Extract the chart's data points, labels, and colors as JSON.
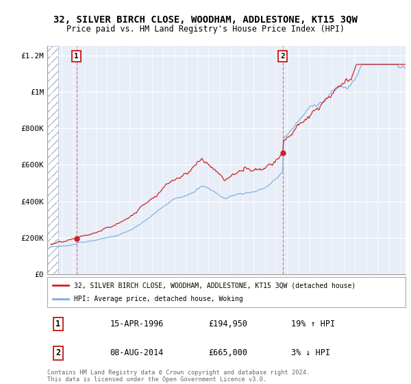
{
  "title": "32, SILVER BIRCH CLOSE, WOODHAM, ADDLESTONE, KT15 3QW",
  "subtitle": "Price paid vs. HM Land Registry's House Price Index (HPI)",
  "red_line_color": "#cc2222",
  "blue_line_color": "#7aaadd",
  "background_color": "#ffffff",
  "plot_bg_color": "#e8eef8",
  "ylim": [
    0,
    1250000
  ],
  "yticks": [
    0,
    200000,
    400000,
    600000,
    800000,
    1000000,
    1200000
  ],
  "ytick_labels": [
    "£0",
    "£200K",
    "£400K",
    "£600K",
    "£800K",
    "£1M",
    "£1.2M"
  ],
  "xstart_year": 1994,
  "xend_year": 2025,
  "sale1_year": 1996.29,
  "sale1_price": 194950,
  "sale2_year": 2014.58,
  "sale2_price": 665000,
  "sale1_label": "1",
  "sale2_label": "2",
  "sale1_date": "15-APR-1996",
  "sale1_amount": "£194,950",
  "sale1_hpi": "19% ↑ HPI",
  "sale2_date": "08-AUG-2014",
  "sale2_amount": "£665,000",
  "sale2_hpi": "3% ↓ HPI",
  "legend_red": "32, SILVER BIRCH CLOSE, WOODHAM, ADDLESTONE, KT15 3QW (detached house)",
  "legend_blue": "HPI: Average price, detached house, Woking",
  "footer": "Contains HM Land Registry data © Crown copyright and database right 2024.\nThis data is licensed under the Open Government Licence v3.0."
}
